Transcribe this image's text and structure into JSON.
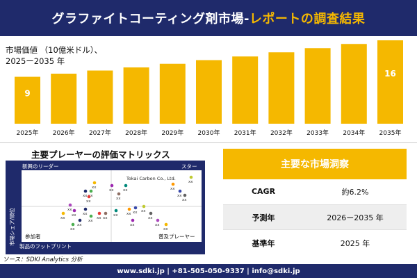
{
  "header": {
    "title_main": "グラファイトコーティング剤市場-",
    "title_accent": "レポートの調査結果"
  },
  "chart_data": {
    "type": "bar",
    "ylabel_line1": "市場価値 （10億米ドル）、",
    "ylabel_line2": "2025ー2035 年",
    "categories": [
      "2025年",
      "2026年",
      "2027年",
      "2028年",
      "2029年",
      "2030年",
      "2031年",
      "2032年",
      "2033年",
      "2034年",
      "2035年"
    ],
    "values": [
      9,
      9.6,
      10.2,
      10.8,
      11.5,
      12.2,
      12.9,
      13.7,
      14.5,
      15.3,
      16
    ],
    "data_labels": {
      "0": "9",
      "10": "16"
    },
    "color": "#f5b800",
    "label_color": "#ffffff"
  },
  "matrix": {
    "title": "主要プレーヤーの評価マトリックス",
    "top_left": "新興のリーダー",
    "top_right": "スター",
    "bottom_left": "参加者",
    "bottom_right": "普及プレーヤー",
    "x_axis": "製品のフットプリント",
    "y_axis": "市場シェア/順位",
    "named_company": "Tokai Carbon Co., Ltd.",
    "placeholder": "xx",
    "dot_colors": [
      "#f5b800",
      "#9c27b0",
      "#1f2a6b",
      "#4caf50",
      "#e53935",
      "#8d6e63",
      "#00897b",
      "#ff9800",
      "#3949ab",
      "#c0ca33",
      "#616161",
      "#ab47bc"
    ]
  },
  "source": "ソース：SDKI Analytics 分析",
  "insights": {
    "heading": "主要な市場洞察",
    "rows": [
      {
        "label": "CAGR",
        "value": "約6.2%"
      },
      {
        "label": "予測年",
        "value": "2026ー2035 年"
      },
      {
        "label": "基準年",
        "value": "2025 年"
      }
    ]
  },
  "footer": "www.sdki.jp | +81-505-050-9337 | info@sdki.jp"
}
